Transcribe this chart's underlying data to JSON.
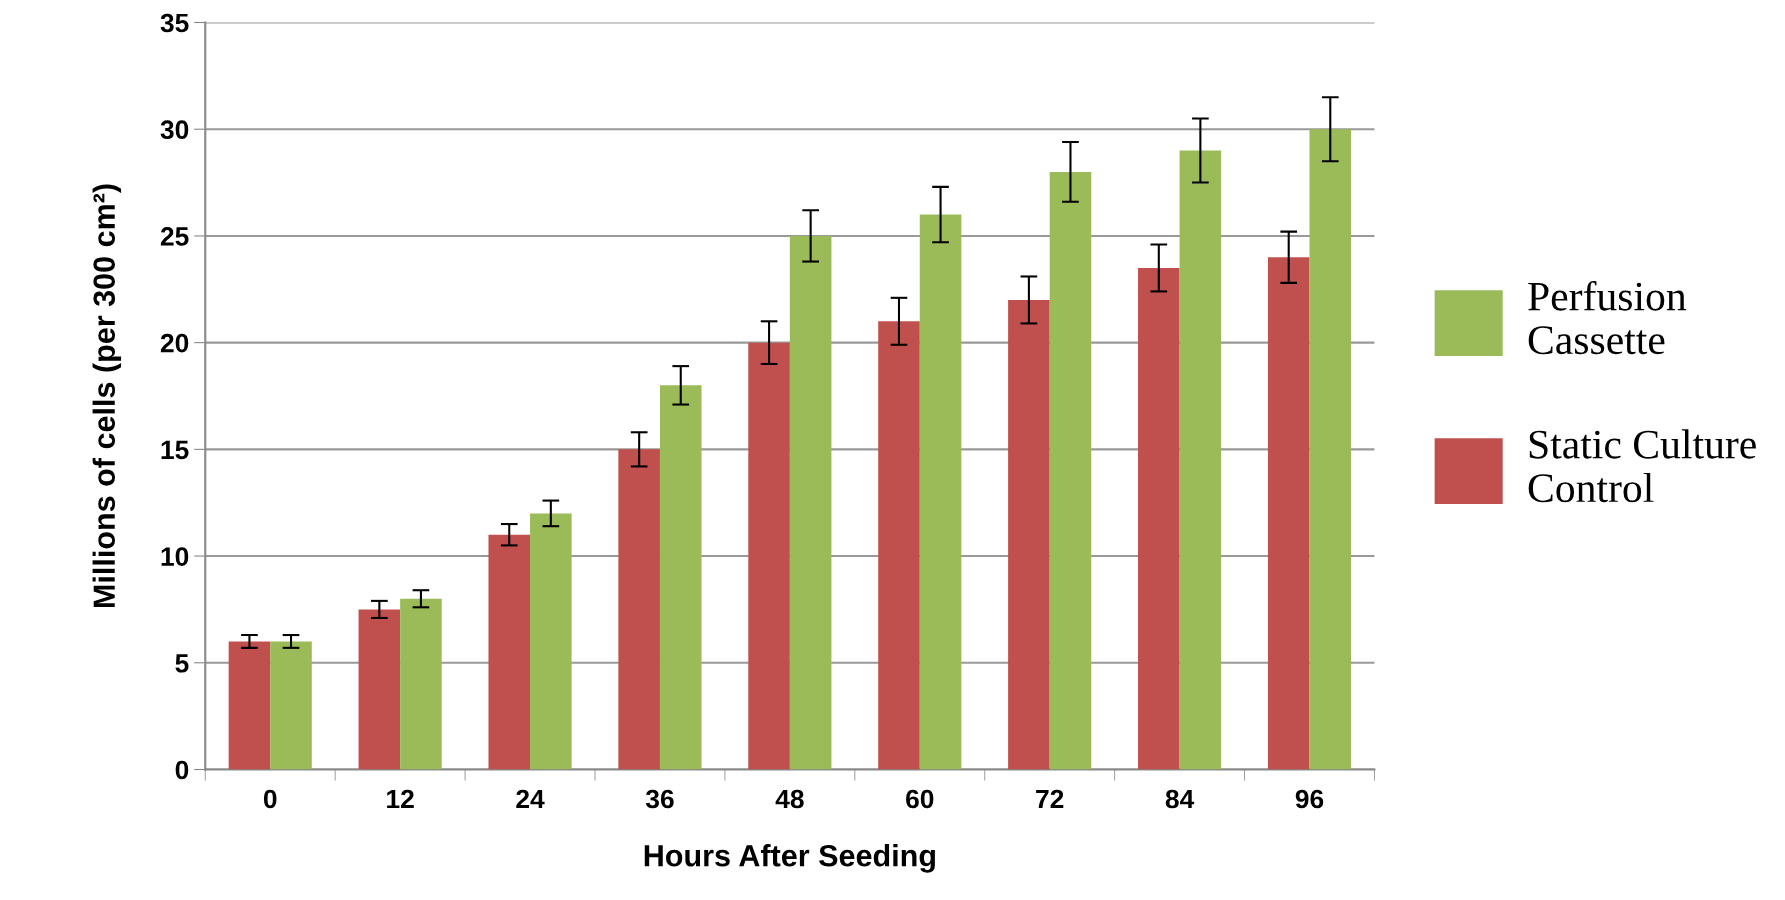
{
  "chart_data": {
    "type": "bar",
    "xlabel": "Hours After Seeding",
    "ylabel": "Millions of cells (per 300 cm²)",
    "categories": [
      "0",
      "12",
      "24",
      "36",
      "48",
      "60",
      "72",
      "84",
      "96"
    ],
    "series": [
      {
        "name": "Static Culture\nControl",
        "color": "#c0504d",
        "values": [
          6,
          7.5,
          11,
          15,
          20,
          21,
          22,
          23.5,
          24
        ],
        "errors": [
          0.3,
          0.4,
          0.5,
          0.8,
          1.0,
          1.1,
          1.1,
          1.1,
          1.2
        ]
      },
      {
        "name": "Perfusion\nCassette",
        "color": "#9bbb59",
        "values": [
          6,
          8,
          12,
          18,
          25,
          26,
          28,
          29,
          30
        ],
        "errors": [
          0.3,
          0.4,
          0.6,
          0.9,
          1.2,
          1.3,
          1.4,
          1.5,
          1.5
        ]
      }
    ],
    "ylim": [
      0,
      35
    ],
    "yticks": [
      0,
      5,
      10,
      15,
      20,
      25,
      30,
      35
    ],
    "grid": "y",
    "legend": "right"
  }
}
